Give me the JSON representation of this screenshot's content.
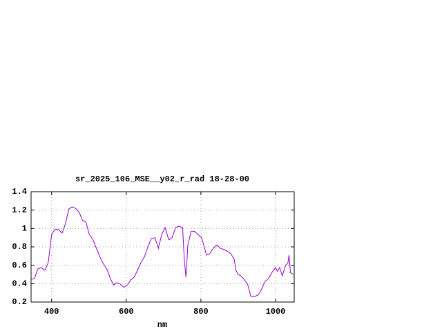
{
  "chart_data": {
    "type": "line",
    "title": "sr_2025_106_MSE__y02_r_rad 18-28-00",
    "xlabel": "nm",
    "grid": true,
    "xlim": [
      345,
      1050
    ],
    "ylim": [
      0.2,
      1.4
    ],
    "xticks": [
      400,
      600,
      800,
      1000
    ],
    "yticks": [
      0.2,
      0.4,
      0.6,
      0.8,
      1,
      1.2,
      1.4
    ],
    "x": [
      345,
      354,
      363,
      372,
      382,
      391,
      400,
      409,
      418,
      428,
      437,
      446,
      455,
      464,
      474,
      483,
      492,
      501,
      511,
      520,
      529,
      538,
      548,
      557,
      566,
      575,
      584,
      594,
      603,
      612,
      621,
      630,
      640,
      649,
      658,
      667,
      677,
      686,
      695,
      704,
      714,
      723,
      732,
      741,
      751,
      756,
      760,
      765,
      774,
      783,
      792,
      802,
      815,
      824,
      833,
      843,
      852,
      861,
      870,
      880,
      889,
      894,
      900,
      907,
      916,
      925,
      934,
      944,
      953,
      962,
      972,
      981,
      990,
      1000,
      1005,
      1011,
      1018,
      1027,
      1033,
      1036,
      1040,
      1048
    ],
    "series": [
      {
        "color": "#9400d3",
        "values": [
          0.447,
          0.455,
          0.56,
          0.575,
          0.545,
          0.63,
          0.935,
          0.99,
          0.99,
          0.95,
          1.05,
          1.21,
          1.235,
          1.22,
          1.175,
          1.085,
          1.07,
          0.935,
          0.875,
          0.785,
          0.695,
          0.62,
          0.56,
          0.46,
          0.385,
          0.41,
          0.395,
          0.36,
          0.385,
          0.44,
          0.47,
          0.545,
          0.635,
          0.695,
          0.8,
          0.89,
          0.9,
          0.785,
          0.935,
          1.01,
          0.875,
          0.9,
          1.01,
          1.025,
          1.01,
          0.635,
          0.47,
          0.82,
          0.97,
          0.97,
          0.935,
          0.9,
          0.71,
          0.725,
          0.785,
          0.82,
          0.785,
          0.77,
          0.755,
          0.725,
          0.67,
          0.545,
          0.5,
          0.485,
          0.445,
          0.395,
          0.26,
          0.26,
          0.275,
          0.335,
          0.425,
          0.455,
          0.52,
          0.575,
          0.535,
          0.575,
          0.485,
          0.6,
          0.62,
          0.71,
          0.52,
          0.5
        ]
      }
    ]
  }
}
